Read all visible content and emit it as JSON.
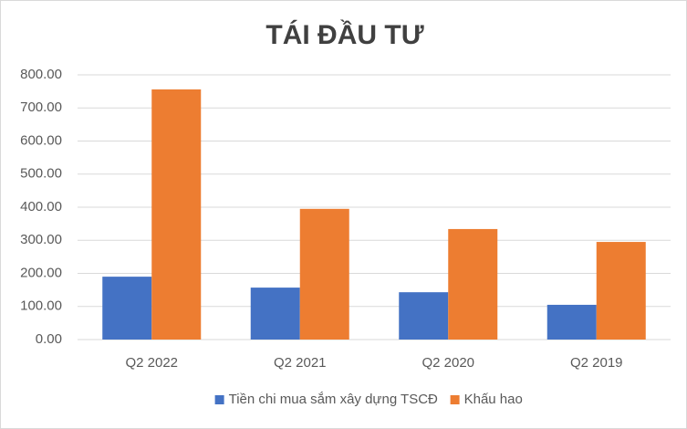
{
  "chart_data": {
    "type": "bar",
    "title": "TÁI ĐẦU TƯ",
    "categories": [
      "Q2 2022",
      "Q2 2021",
      "Q2 2020",
      "Q2 2019"
    ],
    "series": [
      {
        "name": "Tiền chi mua sắm xây dựng TSCĐ",
        "color": "#4472c4",
        "values": [
          190,
          157,
          143,
          105
        ]
      },
      {
        "name": "Khấu hao",
        "color": "#ed7d31",
        "values": [
          756,
          395,
          334,
          295
        ]
      }
    ],
    "ylim": [
      0,
      800
    ],
    "yticks": [
      {
        "value": 0,
        "label": "0.00"
      },
      {
        "value": 100,
        "label": "100.00"
      },
      {
        "value": 200,
        "label": "200.00"
      },
      {
        "value": 300,
        "label": "300.00"
      },
      {
        "value": 400,
        "label": "400.00"
      },
      {
        "value": 500,
        "label": "500.00"
      },
      {
        "value": 600,
        "label": "600.00"
      },
      {
        "value": 700,
        "label": "700.00"
      },
      {
        "value": 800,
        "label": "800.00"
      }
    ],
    "grid": true,
    "legend": "bottom"
  }
}
